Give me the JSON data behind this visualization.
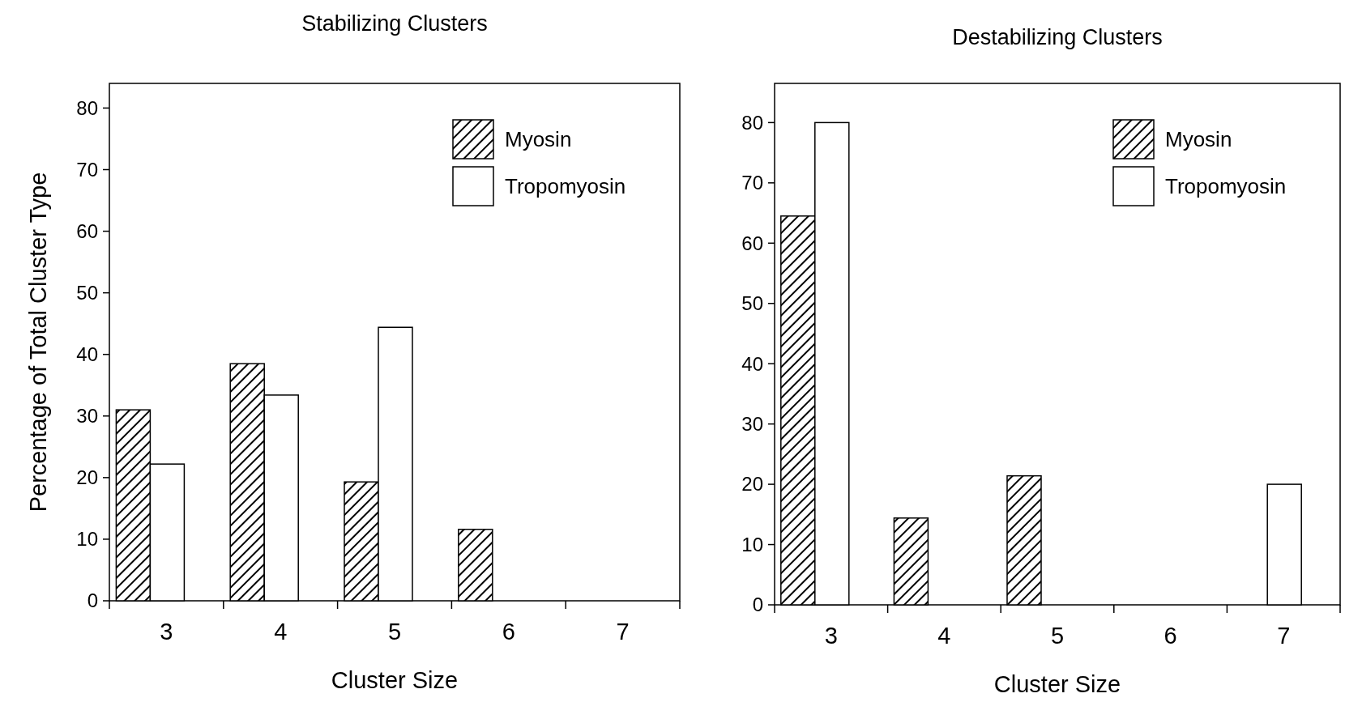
{
  "chart_data": [
    {
      "type": "bar",
      "title": "Stabilizing Clusters",
      "xlabel": "Cluster Size",
      "ylabel": "Percentage of Total Cluster Type",
      "categories": [
        "3",
        "4",
        "5",
        "6",
        "7"
      ],
      "ylim": [
        0,
        84
      ],
      "yticks": [
        0,
        10,
        20,
        30,
        40,
        50,
        60,
        70,
        80
      ],
      "legend": "top right",
      "grid": false,
      "series": [
        {
          "name": "Myosin",
          "color": "#000000",
          "values": [
            31,
            38.5,
            19.3,
            11.6,
            0
          ]
        },
        {
          "name": "Tropomyosin",
          "color": "#ffffff",
          "values": [
            22.2,
            33.4,
            44.4,
            0,
            0
          ]
        }
      ]
    },
    {
      "type": "bar",
      "title": "Destabilizing Clusters",
      "xlabel": "Cluster Size",
      "categories": [
        "3",
        "4",
        "5",
        "6",
        "7"
      ],
      "ylim": [
        0,
        86.5
      ],
      "yticks": [
        0,
        10,
        20,
        30,
        40,
        50,
        60,
        70,
        80
      ],
      "legend": "top right",
      "grid": false,
      "series": [
        {
          "name": "Myosin",
          "color": "#000000",
          "values": [
            64.5,
            14.4,
            21.4,
            0,
            0
          ]
        },
        {
          "name": "Tropomyosin",
          "color": "#ffffff",
          "values": [
            80,
            0,
            0,
            0,
            20
          ]
        }
      ]
    }
  ]
}
